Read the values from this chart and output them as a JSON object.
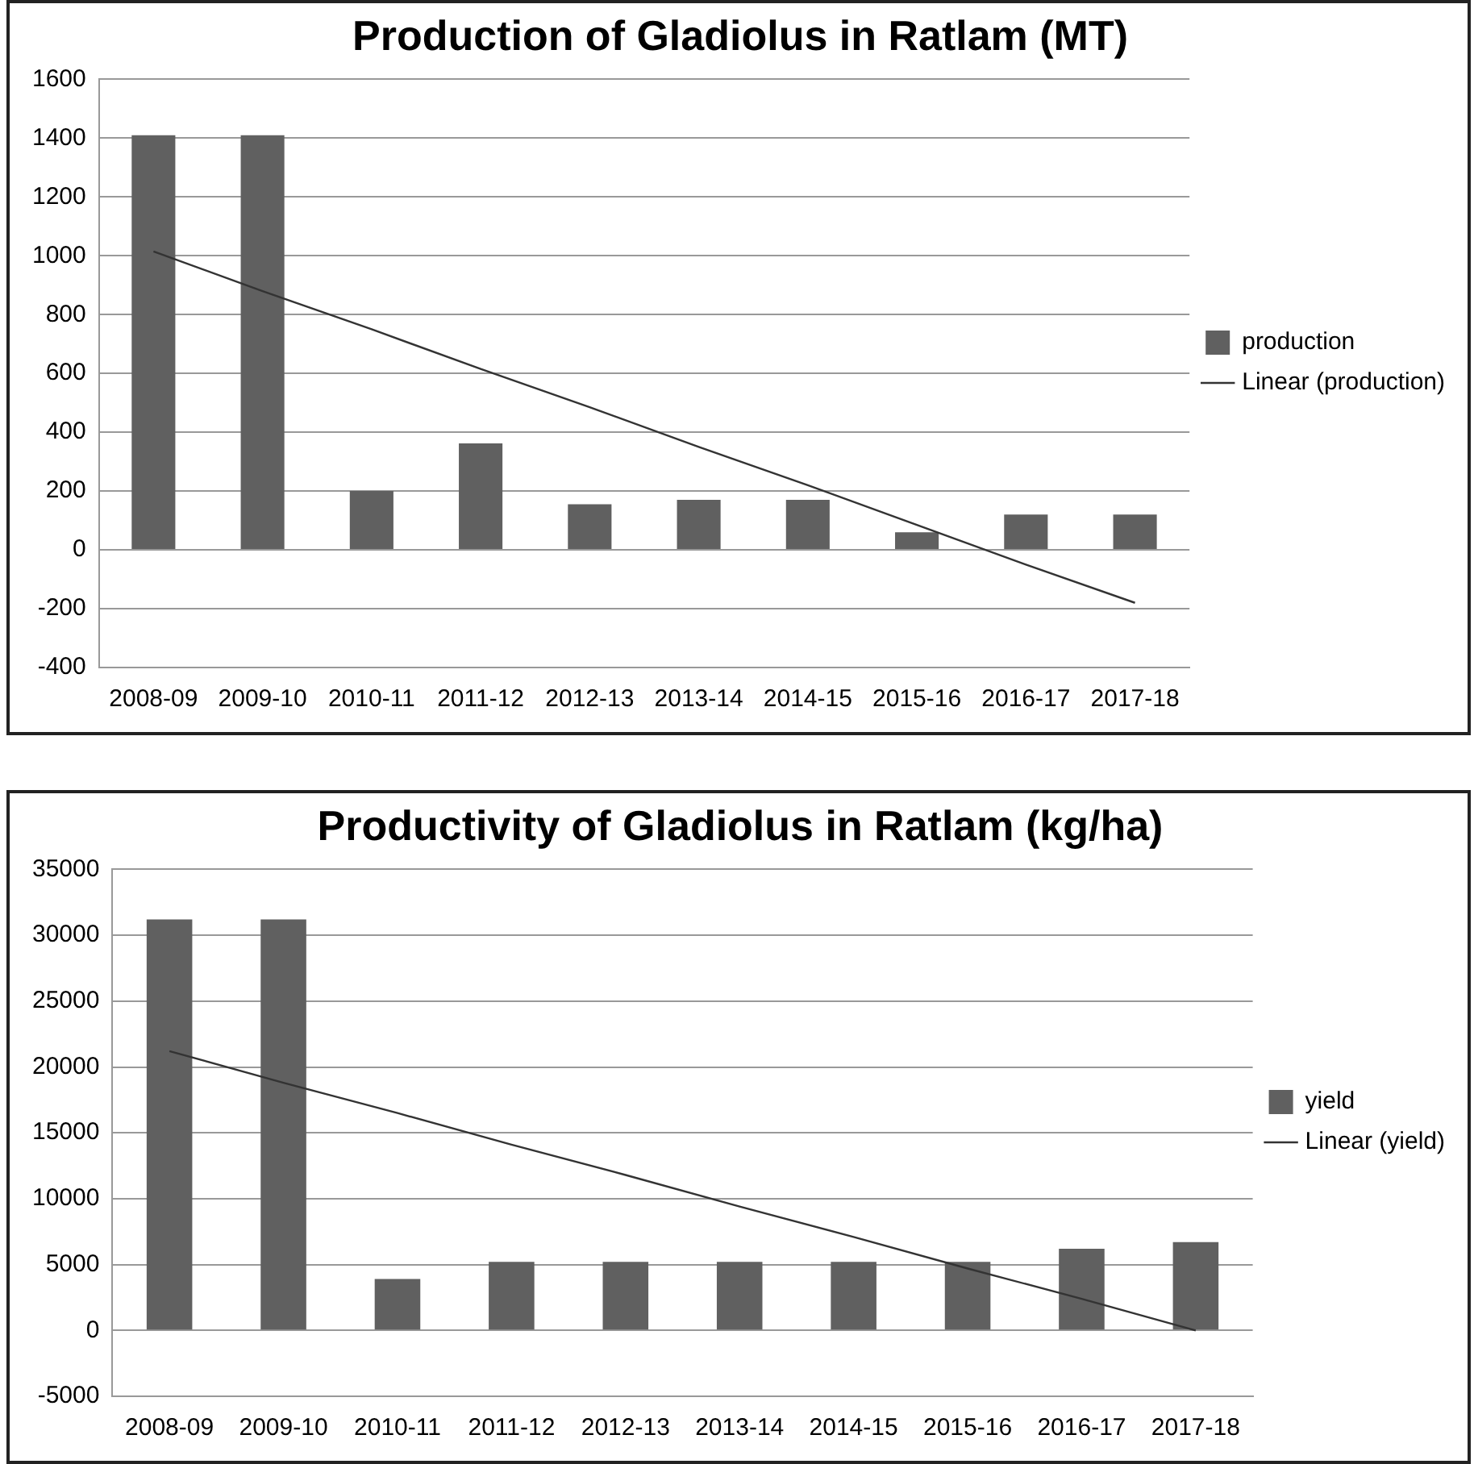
{
  "chart_data": [
    {
      "type": "bar",
      "title": "Production of Gladiolus in Ratlam (MT)",
      "categories": [
        "2008-09",
        "2009-10",
        "2010-11",
        "2011-12",
        "2012-13",
        "2013-14",
        "2014-15",
        "2015-16",
        "2016-17",
        "2017-18"
      ],
      "series": [
        {
          "name": "production",
          "color": "#606060",
          "values": [
            1410,
            1410,
            200,
            362,
            155,
            170,
            170,
            60,
            120,
            120
          ]
        },
        {
          "name": "Linear (production)",
          "type": "line",
          "color": "#333333",
          "values": [
            1015,
            880,
            750,
            615,
            485,
            350,
            220,
            85,
            -50,
            -180
          ]
        }
      ],
      "ylim": [
        -400,
        1600
      ],
      "yticks": [
        -400,
        -200,
        0,
        200,
        400,
        600,
        800,
        1000,
        1200,
        1400,
        1600
      ],
      "grid": "y",
      "legend": "right",
      "marker": "none"
    },
    {
      "type": "bar",
      "title": "Productivity of Gladiolus in Ratlam (kg/ha)",
      "categories": [
        "2008-09",
        "2009-10",
        "2010-11",
        "2011-12",
        "2012-13",
        "2013-14",
        "2014-15",
        "2015-16",
        "2016-17",
        "2017-18"
      ],
      "series": [
        {
          "name": "yield",
          "color": "#606060",
          "values": [
            31200,
            31200,
            3900,
            5200,
            5200,
            5200,
            5200,
            5200,
            6200,
            6700
          ]
        },
        {
          "name": "Linear (yield)",
          "type": "line",
          "color": "#333333",
          "values": [
            21200,
            18800,
            16500,
            14100,
            11800,
            9400,
            7100,
            4700,
            2400,
            0
          ]
        }
      ],
      "ylim": [
        -5000,
        35000
      ],
      "yticks": [
        -5000,
        0,
        5000,
        10000,
        15000,
        20000,
        25000,
        30000,
        35000
      ],
      "grid": "y",
      "legend": "right",
      "marker": "none"
    }
  ]
}
